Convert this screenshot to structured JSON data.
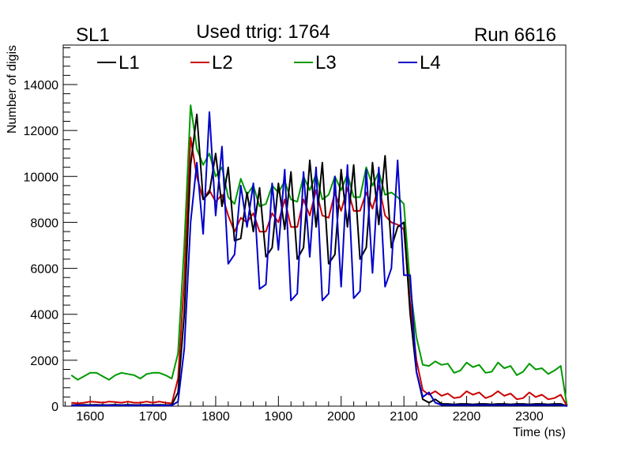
{
  "chart_data": {
    "type": "line",
    "title_left": "SL1",
    "title": "Used ttrig: 1764",
    "title_right": "Run 6616",
    "xlabel": "Time (ns)",
    "ylabel": "Number of digis",
    "xlim": [
      1557,
      2358
    ],
    "ylim": [
      0,
      15720
    ],
    "xticks": [
      1600,
      1700,
      1800,
      1900,
      2000,
      2100,
      2200,
      2300
    ],
    "yticks": [
      0,
      2000,
      4000,
      6000,
      8000,
      10000,
      12000,
      14000
    ],
    "legend_placement": "top",
    "x": [
      1570,
      1580,
      1590,
      1600,
      1610,
      1620,
      1630,
      1640,
      1650,
      1660,
      1670,
      1680,
      1690,
      1700,
      1710,
      1720,
      1730,
      1740,
      1750,
      1760,
      1770,
      1780,
      1790,
      1800,
      1810,
      1820,
      1830,
      1840,
      1850,
      1860,
      1870,
      1880,
      1890,
      1900,
      1910,
      1920,
      1930,
      1940,
      1950,
      1960,
      1970,
      1980,
      1990,
      2000,
      2010,
      2020,
      2030,
      2040,
      2050,
      2060,
      2070,
      2080,
      2090,
      2100,
      2110,
      2120,
      2130,
      2140,
      2150,
      2160,
      2170,
      2180,
      2190,
      2200,
      2210,
      2220,
      2230,
      2240,
      2250,
      2260,
      2270,
      2280,
      2290,
      2300,
      2310,
      2320,
      2330,
      2340,
      2350,
      2360
    ],
    "series": [
      {
        "name": "L1",
        "color": "#000000",
        "values": [
          50,
          50,
          60,
          50,
          60,
          50,
          50,
          60,
          50,
          60,
          50,
          50,
          60,
          50,
          60,
          50,
          50,
          600,
          4000,
          10500,
          12700,
          9000,
          9300,
          11000,
          8700,
          10400,
          7200,
          7300,
          9300,
          7600,
          9500,
          6500,
          6900,
          9700,
          7700,
          10200,
          6400,
          6900,
          10700,
          7800,
          10600,
          6200,
          6600,
          10300,
          7800,
          10500,
          6400,
          6900,
          10600,
          7900,
          10900,
          6900,
          7800,
          8000,
          4000,
          1500,
          300,
          150,
          300,
          100,
          100,
          80,
          100,
          100,
          80,
          100,
          100,
          80,
          100,
          100,
          80,
          100,
          100,
          80,
          100,
          100,
          80,
          100,
          100,
          0
        ]
      },
      {
        "name": "L2",
        "color": "#cc0000",
        "values": [
          150,
          120,
          150,
          200,
          180,
          150,
          200,
          180,
          150,
          200,
          150,
          150,
          200,
          150,
          200,
          150,
          120,
          1200,
          5500,
          11700,
          10000,
          9000,
          9400,
          8900,
          9200,
          8300,
          7600,
          8200,
          8000,
          8400,
          7600,
          7600,
          8400,
          8000,
          9000,
          7800,
          7800,
          9000,
          8300,
          9400,
          8300,
          8200,
          9300,
          8500,
          9500,
          8500,
          8500,
          9300,
          8600,
          9600,
          8300,
          8000,
          7900,
          7700,
          4500,
          2000,
          700,
          500,
          650,
          450,
          550,
          350,
          400,
          650,
          500,
          600,
          350,
          450,
          650,
          450,
          550,
          300,
          350,
          600,
          400,
          500,
          300,
          350,
          500,
          0
        ]
      },
      {
        "name": "L3",
        "color": "#009900",
        "values": [
          1350,
          1150,
          1300,
          1450,
          1450,
          1300,
          1150,
          1350,
          1450,
          1400,
          1350,
          1200,
          1400,
          1450,
          1450,
          1350,
          1200,
          2300,
          7000,
          13100,
          11200,
          10500,
          11000,
          10000,
          10400,
          9100,
          8800,
          9900,
          9200,
          9600,
          8700,
          8800,
          9600,
          9300,
          9800,
          9000,
          8900,
          10000,
          9400,
          10100,
          9000,
          9200,
          10000,
          9400,
          10100,
          9100,
          9100,
          10400,
          9600,
          10200,
          9200,
          9300,
          9100,
          8800,
          5200,
          3000,
          1800,
          1750,
          1950,
          1800,
          1850,
          1450,
          1550,
          1900,
          1700,
          1800,
          1450,
          1500,
          1900,
          1650,
          1750,
          1350,
          1500,
          1850,
          1600,
          1650,
          1400,
          1550,
          1750,
          0
        ]
      },
      {
        "name": "L4",
        "color": "#0000cc",
        "values": [
          30,
          30,
          40,
          30,
          30,
          40,
          30,
          30,
          40,
          30,
          30,
          40,
          30,
          30,
          40,
          30,
          30,
          200,
          2500,
          8000,
          10600,
          7500,
          12800,
          8300,
          11300,
          6200,
          6600,
          9600,
          7800,
          9700,
          5100,
          5300,
          9700,
          6800,
          10300,
          4600,
          4900,
          10200,
          6500,
          10400,
          4600,
          4900,
          10000,
          5200,
          10500,
          4700,
          5000,
          10300,
          5800,
          10400,
          5200,
          6000,
          10700,
          5700,
          5700,
          1500,
          400,
          600,
          150,
          50,
          50,
          40,
          50,
          50,
          40,
          50,
          50,
          40,
          50,
          50,
          40,
          50,
          50,
          40,
          50,
          50,
          40,
          50,
          50,
          0
        ]
      }
    ]
  }
}
